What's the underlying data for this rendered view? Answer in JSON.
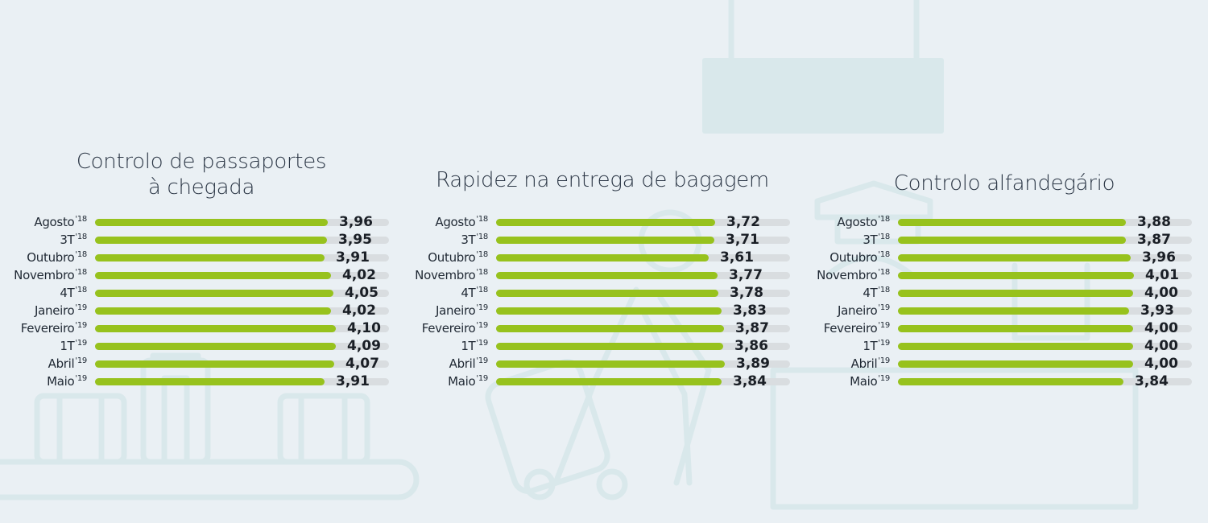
{
  "colors": {
    "background": "#eaf0f4",
    "bar_fill": "#97c21d",
    "bar_track": "#d9dde0",
    "illustration": "#d9e8eb"
  },
  "chart_data": [
    {
      "type": "bar",
      "orientation": "horizontal",
      "title_lines": [
        "Controlo de passaportes",
        "à chegada"
      ],
      "categories": [
        {
          "label": "Agosto",
          "sup": "'18"
        },
        {
          "label": "3T",
          "sup": "'18"
        },
        {
          "label": "Outubro",
          "sup": "'18"
        },
        {
          "label": "Novembro",
          "sup": "'18"
        },
        {
          "label": "4T",
          "sup": "'18"
        },
        {
          "label": "Janeiro",
          "sup": "'19"
        },
        {
          "label": "Fevereiro",
          "sup": "'19"
        },
        {
          "label": "1T",
          "sup": "'19"
        },
        {
          "label": "Abril",
          "sup": "'19"
        },
        {
          "label": "Maio",
          "sup": "'19"
        }
      ],
      "values": [
        3.96,
        3.95,
        3.91,
        4.02,
        4.05,
        4.02,
        4.1,
        4.09,
        4.07,
        3.91
      ],
      "value_labels": [
        "3,96",
        "3,95",
        "3,91",
        "4,02",
        "4,05",
        "4,02",
        "4,10",
        "4,09",
        "4,07",
        "3,91"
      ],
      "xlim": [
        0,
        5
      ]
    },
    {
      "type": "bar",
      "orientation": "horizontal",
      "title_lines": [
        "Rapidez na entrega de bagagem"
      ],
      "categories": [
        {
          "label": "Agosto",
          "sup": "'18"
        },
        {
          "label": "3T",
          "sup": "'18"
        },
        {
          "label": "Outubro",
          "sup": "'18"
        },
        {
          "label": "Novembro",
          "sup": "'18"
        },
        {
          "label": "4T",
          "sup": "'18"
        },
        {
          "label": "Janeiro",
          "sup": "'19"
        },
        {
          "label": "Fevereiro",
          "sup": "'19"
        },
        {
          "label": "1T",
          "sup": "'19"
        },
        {
          "label": "Abril",
          "sup": "'19"
        },
        {
          "label": "Maio",
          "sup": "'19"
        }
      ],
      "values": [
        3.72,
        3.71,
        3.61,
        3.77,
        3.78,
        3.83,
        3.87,
        3.86,
        3.89,
        3.84
      ],
      "value_labels": [
        "3,72",
        "3,71",
        "3,61",
        "3,77",
        "3,78",
        "3,83",
        "3,87",
        "3,86",
        "3,89",
        "3,84"
      ],
      "xlim": [
        0,
        5
      ]
    },
    {
      "type": "bar",
      "orientation": "horizontal",
      "title_lines": [
        "Controlo alfandegário"
      ],
      "categories": [
        {
          "label": "Agosto",
          "sup": "'18"
        },
        {
          "label": "3T",
          "sup": "'18"
        },
        {
          "label": "Outubro",
          "sup": "'18"
        },
        {
          "label": "Novembro",
          "sup": "'18"
        },
        {
          "label": "4T",
          "sup": "'18"
        },
        {
          "label": "Janeiro",
          "sup": "'19"
        },
        {
          "label": "Fevereiro",
          "sup": "'19"
        },
        {
          "label": "1T",
          "sup": "'19"
        },
        {
          "label": "Abril",
          "sup": "'19"
        },
        {
          "label": "Maio",
          "sup": "'19"
        }
      ],
      "values": [
        3.88,
        3.87,
        3.96,
        4.01,
        4.0,
        3.93,
        4.0,
        4.0,
        4.0,
        3.84
      ],
      "value_labels": [
        "3,88",
        "3,87",
        "3,96",
        "4,01",
        "4,00",
        "3,93",
        "4,00",
        "4,00",
        "4,00",
        "3,84"
      ],
      "xlim": [
        0,
        5
      ]
    }
  ]
}
